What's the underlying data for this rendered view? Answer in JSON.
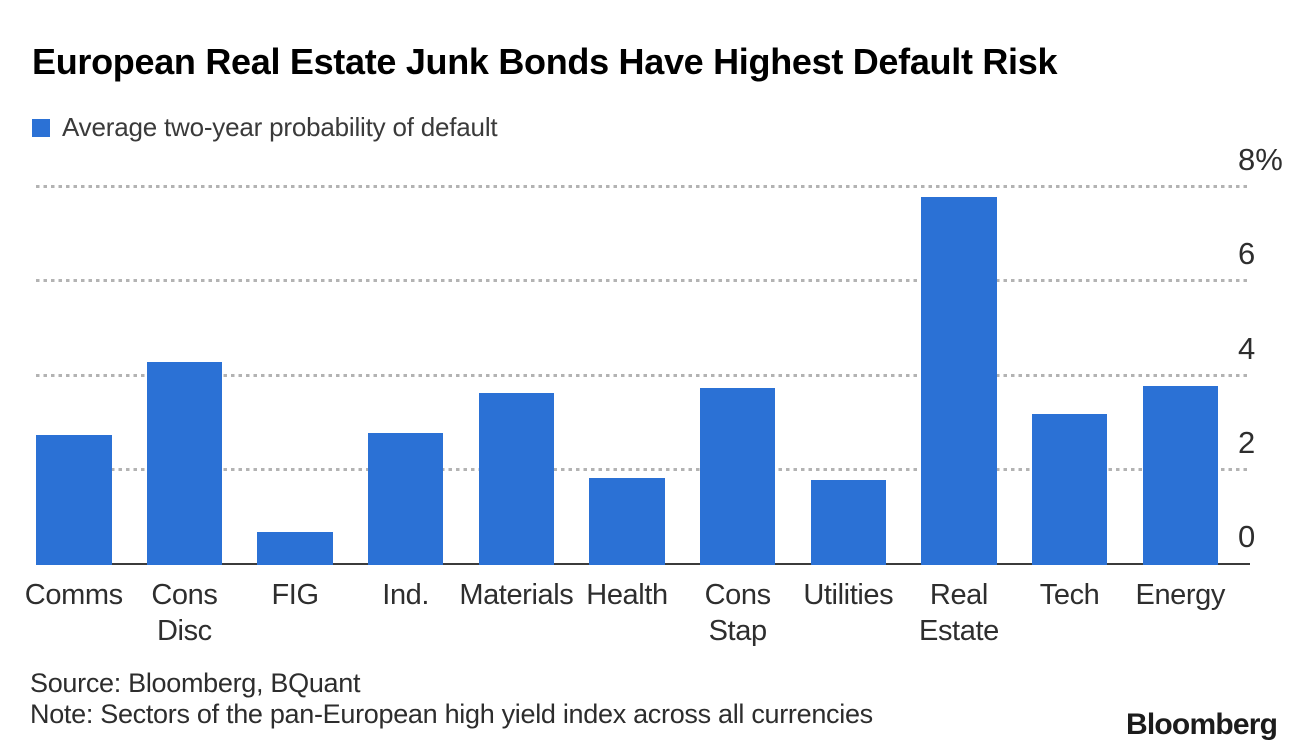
{
  "header": {
    "title": "European Real Estate Junk Bonds Have Highest Default Risk"
  },
  "legend": {
    "label": "Average two-year probability of default",
    "swatch_color": "#2b71d5"
  },
  "footer": {
    "source": "Source: Bloomberg, BQuant",
    "note": "Note: Sectors of the pan-European high yield index across all currencies",
    "logo": "Bloomberg"
  },
  "chart_data": {
    "type": "bar",
    "title": "European Real Estate Junk Bonds Have Highest Default Risk",
    "legend_label": "Average two-year probability of default",
    "categories": [
      "Comms",
      "Cons Disc",
      "FIG",
      "Ind.",
      "Materials",
      "Health",
      "Cons Stap",
      "Utilities",
      "Real Estate",
      "Tech",
      "Energy"
    ],
    "category_label_lines": [
      [
        "Comms"
      ],
      [
        "Cons",
        "Disc"
      ],
      [
        "FIG"
      ],
      [
        "Ind."
      ],
      [
        "Materials"
      ],
      [
        "Health"
      ],
      [
        "Cons",
        "Stap"
      ],
      [
        "Utilities"
      ],
      [
        "Real",
        "Estate"
      ],
      [
        "Tech"
      ],
      [
        "Energy"
      ]
    ],
    "values": [
      2.75,
      4.3,
      0.7,
      2.8,
      3.65,
      1.85,
      3.75,
      1.8,
      7.8,
      3.2,
      3.8
    ],
    "unit": "%",
    "xlabel": "",
    "ylabel": "",
    "ylim": [
      0,
      8
    ],
    "yticks": [
      {
        "value": 0,
        "label": "0"
      },
      {
        "value": 2,
        "label": "2"
      },
      {
        "value": 4,
        "label": "4"
      },
      {
        "value": 6,
        "label": "6"
      },
      {
        "value": 8,
        "label": "8%"
      }
    ],
    "grid": "dotted-horizontal",
    "grid_color": "#b3b3b3",
    "legend_position": "top-left",
    "bar_color": "#2b71d5",
    "axis_line_color": "#3b3b3b",
    "source": "Source: Bloomberg, BQuant",
    "note": "Note: Sectors of the pan-European high yield index across all currencies"
  }
}
